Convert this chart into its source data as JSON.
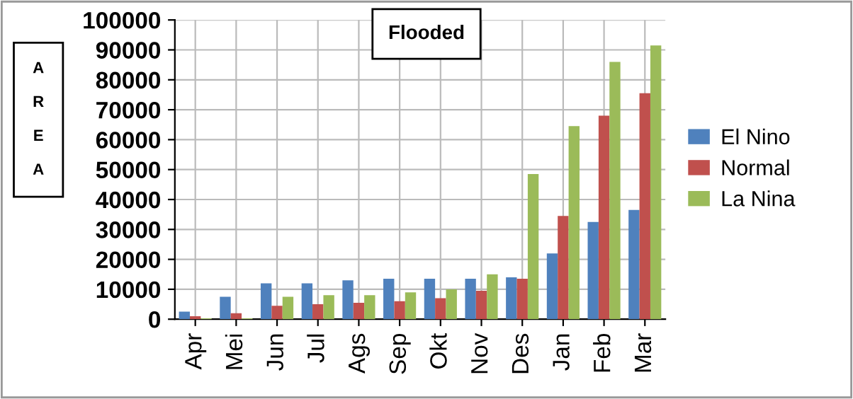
{
  "chart_data": {
    "type": "bar",
    "title": "Flooded",
    "ylabel": "AREA",
    "categories": [
      "Apr",
      "Mei",
      "Jun",
      "Jul",
      "Ags",
      "Sep",
      "Okt",
      "Nov",
      "Des",
      "Jan",
      "Feb",
      "Mar"
    ],
    "series": [
      {
        "name": "El Nino",
        "color": "#4f81bd",
        "values": [
          2500,
          7500,
          12000,
          12000,
          13000,
          13500,
          13500,
          13500,
          14000,
          22000,
          32500,
          36500
        ]
      },
      {
        "name": "Normal",
        "color": "#c0504d",
        "values": [
          1000,
          2000,
          4500,
          5000,
          5500,
          6000,
          7000,
          9500,
          13500,
          34500,
          68000,
          75500
        ]
      },
      {
        "name": "La Nina",
        "color": "#9bbb59",
        "values": [
          300,
          300,
          7500,
          8000,
          8000,
          9000,
          10000,
          15000,
          48500,
          64500,
          86000,
          91500
        ]
      }
    ],
    "ylim": [
      0,
      100000
    ],
    "yticks": [
      0,
      10000,
      20000,
      30000,
      40000,
      50000,
      60000,
      70000,
      80000,
      90000,
      100000
    ],
    "grid": true,
    "legend": "right"
  }
}
